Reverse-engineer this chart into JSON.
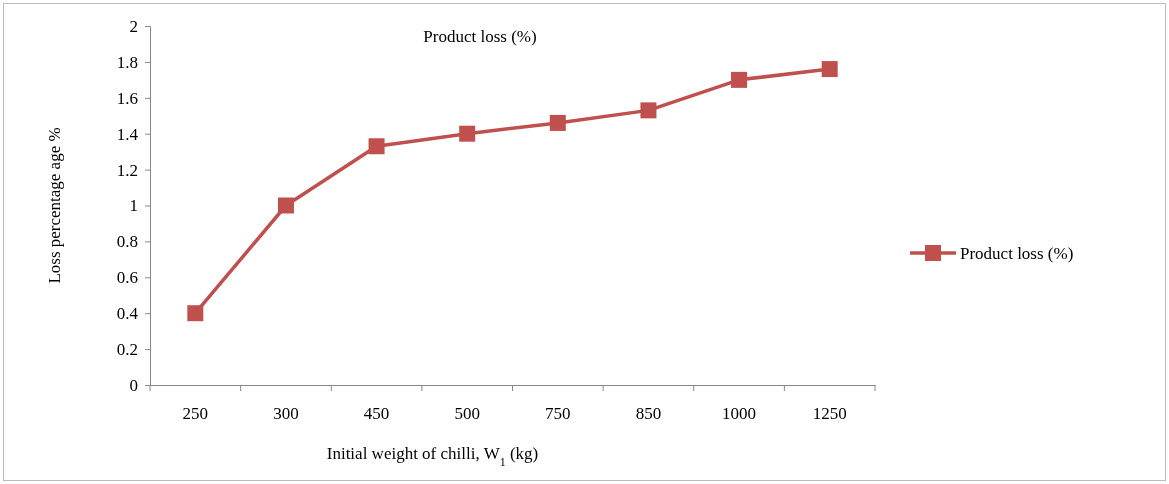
{
  "chart_data": {
    "type": "line",
    "title": "Product loss (%)",
    "xlabel": "Initial weight of chilli, W$_{1}$ (kg)",
    "ylabel": "Loss percentage age %",
    "categories": [
      "250",
      "300",
      "450",
      "500",
      "750",
      "850",
      "1000",
      "1250"
    ],
    "series": [
      {
        "name": "Product loss (%)",
        "color": "#c0504d",
        "values": [
          0.4,
          1.0,
          1.33,
          1.4,
          1.46,
          1.53,
          1.7,
          1.76
        ]
      }
    ],
    "ylim": [
      0,
      2
    ],
    "yticks": [
      0,
      0.2,
      0.4,
      0.6,
      0.8,
      1,
      1.2,
      1.4,
      1.6,
      1.8,
      2
    ],
    "grid": false,
    "legend": "right",
    "marker": "square",
    "line_style": "solid"
  }
}
